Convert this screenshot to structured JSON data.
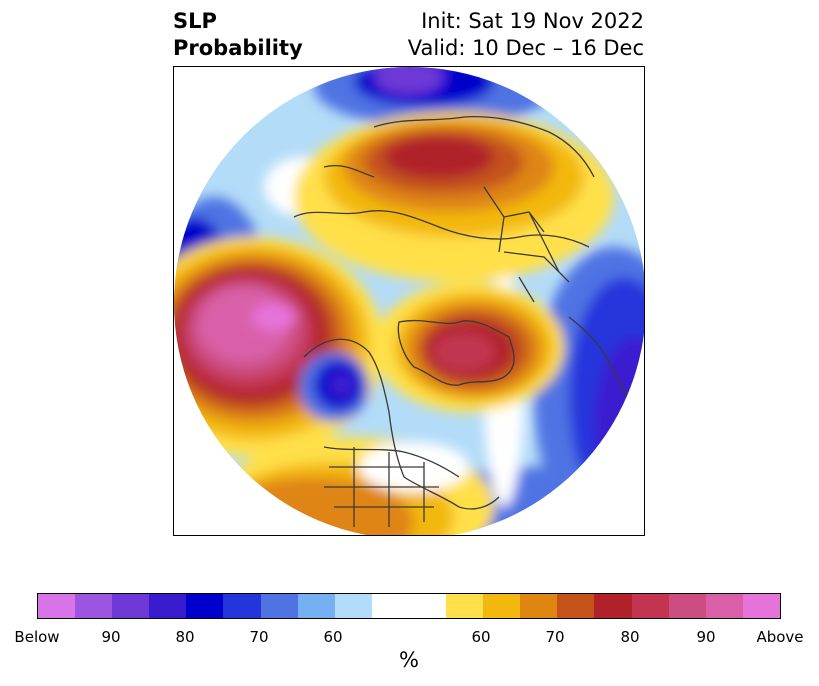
{
  "title": {
    "left_line1": "SLP",
    "left_line2": "Probability",
    "right_line1": "Init: Sat 19 Nov 2022",
    "right_line2": "Valid: 10 Dec – 16 Dec"
  },
  "colorbar": {
    "unit_label": "%",
    "ticks": [
      "Below",
      "90",
      "80",
      "70",
      "60",
      "60",
      "70",
      "80",
      "90",
      "Above"
    ],
    "colors": [
      "#d873e8",
      "#9c55e0",
      "#6d38d6",
      "#3a1ccf",
      "#0000cc",
      "#2535dc",
      "#4f73e3",
      "#75b0f2",
      "#b3dcf8",
      "#ffffff",
      "#ffe04a",
      "#f3b80d",
      "#df8512",
      "#c4521a",
      "#b0212a",
      "#c23450",
      "#cc4d80",
      "#d960a8",
      "#e673da"
    ]
  },
  "map": {
    "projection": "north-polar-stereographic",
    "features": [
      "sea-level-pressure-probability-field",
      "coastlines",
      "country-borders",
      "state-province-borders"
    ]
  }
}
